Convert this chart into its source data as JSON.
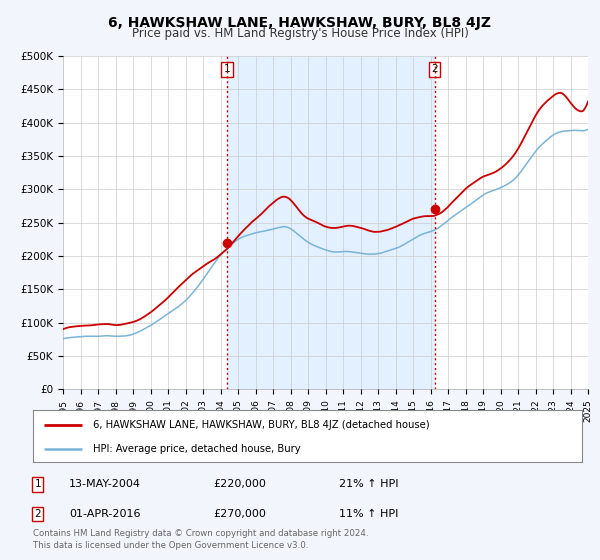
{
  "title": "6, HAWKSHAW LANE, HAWKSHAW, BURY, BL8 4JZ",
  "subtitle": "Price paid vs. HM Land Registry's House Price Index (HPI)",
  "ylim": [
    0,
    500000
  ],
  "yticks": [
    0,
    50000,
    100000,
    150000,
    200000,
    250000,
    300000,
    350000,
    400000,
    450000,
    500000
  ],
  "ytick_labels": [
    "£0",
    "£50K",
    "£100K",
    "£150K",
    "£200K",
    "£250K",
    "£300K",
    "£350K",
    "£400K",
    "£450K",
    "£500K"
  ],
  "xlim_start": 1995,
  "xlim_end": 2025,
  "hpi_color": "#7ab4d8",
  "price_color": "#cc0000",
  "vline_color": "#cc0000",
  "shade_color": "#ddeeff",
  "sale1_year": 2004.37,
  "sale1_price": 220000,
  "sale1_label": "13-MAY-2004",
  "sale1_pct": "21% ↑ HPI",
  "sale2_year": 2016.25,
  "sale2_price": 270000,
  "sale2_label": "01-APR-2016",
  "sale2_pct": "11% ↑ HPI",
  "legend_line1": "6, HAWKSHAW LANE, HAWKSHAW, BURY, BL8 4JZ (detached house)",
  "legend_line2": "HPI: Average price, detached house, Bury",
  "footer1": "Contains HM Land Registry data © Crown copyright and database right 2024.",
  "footer2": "This data is licensed under the Open Government Licence v3.0.",
  "background_color": "#f2f5fb",
  "plot_bg_color": "#ffffff",
  "grid_color": "#cccccc",
  "title_fontsize": 10,
  "subtitle_fontsize": 8.5
}
